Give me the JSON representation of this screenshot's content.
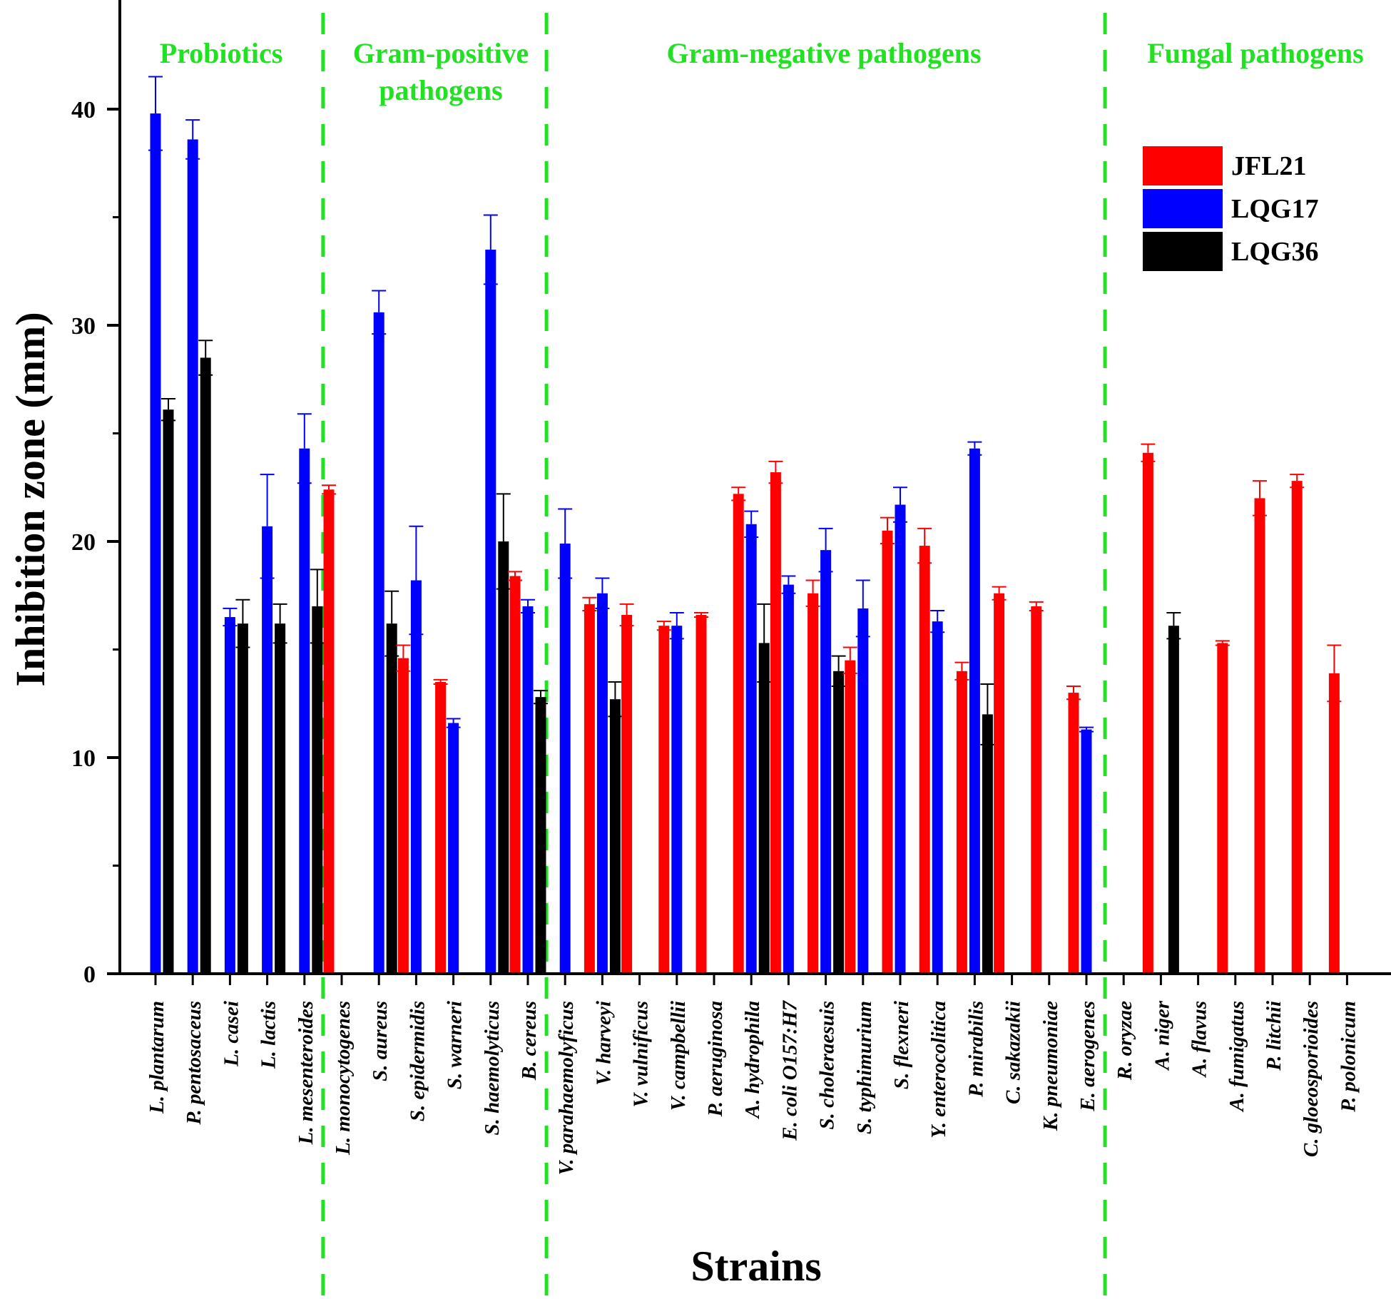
{
  "chart_data": {
    "type": "bar",
    "xlabel": "Strains",
    "ylabel": "Inhibition zone (mm)",
    "ylim": [
      0,
      44
    ],
    "yticks": [
      "0",
      "10",
      "20",
      "30",
      "40"
    ],
    "legend_position": "top-right",
    "series": [
      {
        "name": "JFL21",
        "color": "#ff0000"
      },
      {
        "name": "LQG17",
        "color": "#0000ff"
      },
      {
        "name": "LQG36",
        "color": "#000000"
      }
    ],
    "groups": [
      {
        "label_lines": [
          "Probiotics"
        ]
      },
      {
        "label_lines": [
          "Gram-positive",
          "pathogens"
        ]
      },
      {
        "label_lines": [
          "Gram-negative pathogens"
        ]
      },
      {
        "label_lines": [
          "Fungal pathogens"
        ]
      }
    ],
    "categories": [
      {
        "name": "L. plantarum",
        "group": 0,
        "bars": [
          {
            "s": 1,
            "v": 39.8,
            "e": 1.7
          },
          {
            "s": 2,
            "v": 26.1,
            "e": 0.5
          }
        ]
      },
      {
        "name": "P. pentosaceus",
        "group": 0,
        "bars": [
          {
            "s": 1,
            "v": 38.6,
            "e": 0.9
          },
          {
            "s": 2,
            "v": 28.5,
            "e": 0.8
          }
        ]
      },
      {
        "name": "L. casei",
        "group": 0,
        "bars": [
          {
            "s": 1,
            "v": 16.5,
            "e": 0.4
          },
          {
            "s": 2,
            "v": 16.2,
            "e": 1.1
          }
        ]
      },
      {
        "name": "L. lactis",
        "group": 0,
        "bars": [
          {
            "s": 1,
            "v": 20.7,
            "e": 2.4
          },
          {
            "s": 2,
            "v": 16.2,
            "e": 0.9
          }
        ]
      },
      {
        "name": "L. mesenteroides",
        "group": 0,
        "bars": [
          {
            "s": 1,
            "v": 24.3,
            "e": 1.6
          },
          {
            "s": 2,
            "v": 17.0,
            "e": 1.7
          }
        ]
      },
      {
        "name": "L. monocytogenes",
        "group": 1,
        "bars": [
          {
            "s": 0,
            "v": 22.4,
            "e": 0.2
          }
        ]
      },
      {
        "name": "S. aureus",
        "group": 1,
        "bars": [
          {
            "s": 1,
            "v": 30.6,
            "e": 1.0
          },
          {
            "s": 2,
            "v": 16.2,
            "e": 1.5
          }
        ]
      },
      {
        "name": "S. epidermidis",
        "group": 1,
        "bars": [
          {
            "s": 0,
            "v": 14.6,
            "e": 0.6
          },
          {
            "s": 1,
            "v": 18.2,
            "e": 2.5
          }
        ]
      },
      {
        "name": "S. warneri",
        "group": 1,
        "bars": [
          {
            "s": 0,
            "v": 13.5,
            "e": 0.1
          },
          {
            "s": 1,
            "v": 11.6,
            "e": 0.2
          }
        ]
      },
      {
        "name": "S. haemolyticus",
        "group": 1,
        "bars": [
          {
            "s": 1,
            "v": 33.5,
            "e": 1.6
          },
          {
            "s": 2,
            "v": 20.0,
            "e": 2.2
          }
        ]
      },
      {
        "name": "B. cereus",
        "group": 1,
        "bars": [
          {
            "s": 0,
            "v": 18.4,
            "e": 0.2
          },
          {
            "s": 1,
            "v": 17.0,
            "e": 0.3
          },
          {
            "s": 2,
            "v": 12.8,
            "e": 0.3
          }
        ]
      },
      {
        "name": "V. parahaemolyficus",
        "group": 2,
        "bars": [
          {
            "s": 1,
            "v": 19.9,
            "e": 1.6
          }
        ]
      },
      {
        "name": "V. harveyi",
        "group": 2,
        "bars": [
          {
            "s": 0,
            "v": 17.1,
            "e": 0.3
          },
          {
            "s": 1,
            "v": 17.6,
            "e": 0.7
          },
          {
            "s": 2,
            "v": 12.7,
            "e": 0.8
          }
        ]
      },
      {
        "name": "V. vulnificus",
        "group": 2,
        "bars": [
          {
            "s": 0,
            "v": 16.6,
            "e": 0.5
          }
        ]
      },
      {
        "name": "V. campbellii",
        "group": 2,
        "bars": [
          {
            "s": 0,
            "v": 16.1,
            "e": 0.2
          },
          {
            "s": 1,
            "v": 16.1,
            "e": 0.6
          }
        ]
      },
      {
        "name": "P. aeruginosa",
        "group": 2,
        "bars": [
          {
            "s": 0,
            "v": 16.6,
            "e": 0.1
          }
        ]
      },
      {
        "name": "A. hydrophila",
        "group": 2,
        "bars": [
          {
            "s": 0,
            "v": 22.2,
            "e": 0.3
          },
          {
            "s": 1,
            "v": 20.8,
            "e": 0.6
          },
          {
            "s": 2,
            "v": 15.3,
            "e": 1.8
          }
        ]
      },
      {
        "name": "E. coli O157:H7",
        "group": 2,
        "bars": [
          {
            "s": 0,
            "v": 23.2,
            "e": 0.5
          },
          {
            "s": 1,
            "v": 18.0,
            "e": 0.4
          }
        ]
      },
      {
        "name": "S. choleraesuis",
        "group": 2,
        "bars": [
          {
            "s": 0,
            "v": 17.6,
            "e": 0.6
          },
          {
            "s": 1,
            "v": 19.6,
            "e": 1.0
          },
          {
            "s": 2,
            "v": 14.0,
            "e": 0.7
          }
        ]
      },
      {
        "name": "S. typhimurium",
        "group": 2,
        "bars": [
          {
            "s": 0,
            "v": 14.5,
            "e": 0.6
          },
          {
            "s": 1,
            "v": 16.9,
            "e": 1.3
          }
        ]
      },
      {
        "name": "S. flexneri",
        "group": 2,
        "bars": [
          {
            "s": 0,
            "v": 20.5,
            "e": 0.6
          },
          {
            "s": 1,
            "v": 21.7,
            "e": 0.8
          }
        ]
      },
      {
        "name": "Y. enterocolitica",
        "group": 2,
        "bars": [
          {
            "s": 0,
            "v": 19.8,
            "e": 0.8
          },
          {
            "s": 1,
            "v": 16.3,
            "e": 0.5
          }
        ]
      },
      {
        "name": "P. mirabilis",
        "group": 2,
        "bars": [
          {
            "s": 0,
            "v": 14.0,
            "e": 0.4
          },
          {
            "s": 1,
            "v": 24.3,
            "e": 0.3
          },
          {
            "s": 2,
            "v": 12.0,
            "e": 1.4
          }
        ]
      },
      {
        "name": "C. sakazakii",
        "group": 2,
        "bars": [
          {
            "s": 0,
            "v": 17.6,
            "e": 0.3
          }
        ]
      },
      {
        "name": "K. pneumoniae",
        "group": 2,
        "bars": [
          {
            "s": 0,
            "v": 17.0,
            "e": 0.2
          }
        ]
      },
      {
        "name": "E. aerogenes",
        "group": 2,
        "bars": [
          {
            "s": 0,
            "v": 13.0,
            "e": 0.3
          },
          {
            "s": 1,
            "v": 11.3,
            "e": 0.1
          }
        ]
      },
      {
        "name": "R. oryzae",
        "group": 3,
        "bars": []
      },
      {
        "name": "A. niger",
        "group": 3,
        "bars": [
          {
            "s": 0,
            "v": 24.1,
            "e": 0.4
          },
          {
            "s": 2,
            "v": 16.1,
            "e": 0.6
          }
        ]
      },
      {
        "name": "A. flavus",
        "group": 3,
        "bars": []
      },
      {
        "name": "A. fumigatus",
        "group": 3,
        "bars": [
          {
            "s": 0,
            "v": 15.3,
            "e": 0.1
          }
        ]
      },
      {
        "name": "P. litchii",
        "group": 3,
        "bars": [
          {
            "s": 0,
            "v": 22.0,
            "e": 0.8
          }
        ]
      },
      {
        "name": "C. gloeosporioides",
        "group": 3,
        "bars": [
          {
            "s": 0,
            "v": 22.8,
            "e": 0.3
          }
        ]
      },
      {
        "name": "P. polonicum",
        "group": 3,
        "bars": [
          {
            "s": 0,
            "v": 13.9,
            "e": 1.3
          }
        ]
      }
    ]
  }
}
